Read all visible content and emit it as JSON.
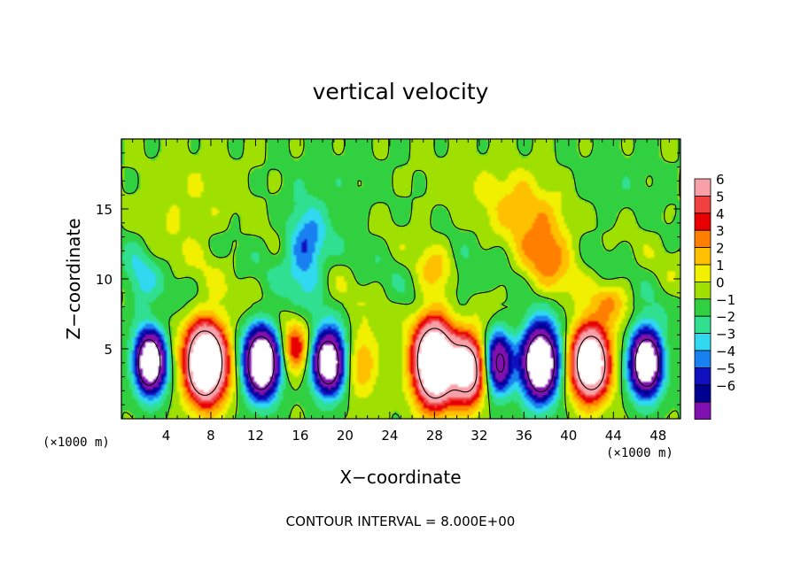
{
  "chart_data": {
    "type": "heatmap",
    "title": "vertical velocity",
    "xlabel": "X−coordinate",
    "ylabel": "Z−coordinate",
    "x_unit": "(×1000 m)",
    "x_unit_right": "(×1000 m)",
    "footer": "CONTOUR INTERVAL = 8.000E+00",
    "xlim": [
      0,
      50
    ],
    "ylim": [
      0,
      20
    ],
    "x_ticks": [
      4,
      8,
      12,
      16,
      20,
      24,
      28,
      32,
      36,
      40,
      44,
      48
    ],
    "y_ticks": [
      5,
      10,
      15
    ],
    "colorbar": {
      "levels": [
        6,
        5,
        4,
        3,
        2,
        1,
        0,
        -1,
        -2,
        -3,
        -4,
        -5,
        -6
      ],
      "labels": [
        "6",
        "5",
        "4",
        "3",
        "2",
        "1",
        "0",
        "−1",
        "−2",
        "−3",
        "−4",
        "−5",
        "−6"
      ],
      "colors": [
        "#f7a0a8",
        "#f04040",
        "#e80000",
        "#ff8000",
        "#ffc000",
        "#f0f000",
        "#a0e000",
        "#30d040",
        "#30e090",
        "#30d8f0",
        "#1880f0",
        "#1010c0",
        "#000090",
        "#8010b0"
      ]
    },
    "cells": [
      {
        "x": 2.5,
        "z": 4,
        "sx": 1.3,
        "sz": 2.2,
        "w": -14
      },
      {
        "x": 7.5,
        "z": 4,
        "sx": 1.8,
        "sz": 2.8,
        "w": 16
      },
      {
        "x": 12.5,
        "z": 4,
        "sx": 1.5,
        "sz": 2.4,
        "w": -15
      },
      {
        "x": 15.5,
        "z": 5,
        "sx": 1.2,
        "sz": 1.8,
        "w": 5
      },
      {
        "x": 18.5,
        "z": 4,
        "sx": 1.4,
        "sz": 2.2,
        "w": -13
      },
      {
        "x": 21.5,
        "z": 4,
        "sx": 1.5,
        "sz": 2.5,
        "w": 3
      },
      {
        "x": 28,
        "z": 4,
        "sx": 1.8,
        "sz": 3,
        "w": 16
      },
      {
        "x": 31,
        "z": 3.5,
        "sx": 1.5,
        "sz": 2.5,
        "w": 11
      },
      {
        "x": 33.8,
        "z": 4,
        "sx": 1.2,
        "sz": 2.2,
        "w": -9
      },
      {
        "x": 37.5,
        "z": 4,
        "sx": 1.6,
        "sz": 2.6,
        "w": -15
      },
      {
        "x": 42,
        "z": 4,
        "sx": 1.7,
        "sz": 2.6,
        "w": 14
      },
      {
        "x": 47,
        "z": 4,
        "sx": 1.4,
        "sz": 2.3,
        "w": -14
      },
      {
        "x": 16.5,
        "z": 12,
        "sx": 1.8,
        "sz": 2.8,
        "w": -4.5
      },
      {
        "x": 38,
        "z": 12.5,
        "sx": 2.5,
        "sz": 3.5,
        "w": 3.5
      },
      {
        "x": 35,
        "z": 15.5,
        "sx": 2.5,
        "sz": 2.2,
        "w": 1.8
      },
      {
        "x": 1.5,
        "z": 9.5,
        "sx": 1.5,
        "sz": 2.5,
        "w": -2.2
      },
      {
        "x": 28,
        "z": 10.5,
        "sx": 1.5,
        "sz": 2,
        "w": 1.8
      },
      {
        "x": 44,
        "z": 8.5,
        "sx": 1.5,
        "sz": 1.5,
        "w": 2.5
      },
      {
        "x": 30.5,
        "z": 9.5,
        "sx": 1.4,
        "sz": 1.6,
        "w": -1.8
      },
      {
        "x": 6,
        "z": 14,
        "sx": 4,
        "sz": 3,
        "w": 0.6
      }
    ]
  }
}
